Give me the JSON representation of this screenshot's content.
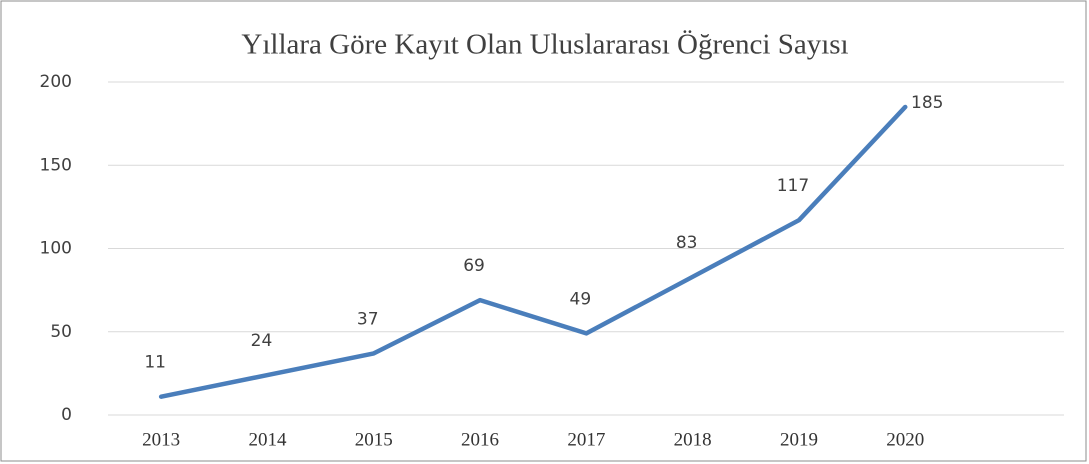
{
  "chart_data": {
    "type": "line",
    "title": "Yıllara Göre Kayıt Olan Uluslararası Öğrenci Sayısı",
    "categories": [
      "2013",
      "2014",
      "2015",
      "2016",
      "2017",
      "2018",
      "2019",
      "2020"
    ],
    "values": [
      11,
      24,
      37,
      69,
      49,
      83,
      117,
      185
    ],
    "color": "#4a7ebb",
    "ylim": [
      0,
      200
    ],
    "yticks": [
      0,
      50,
      100,
      150,
      200
    ],
    "grid": true
  }
}
